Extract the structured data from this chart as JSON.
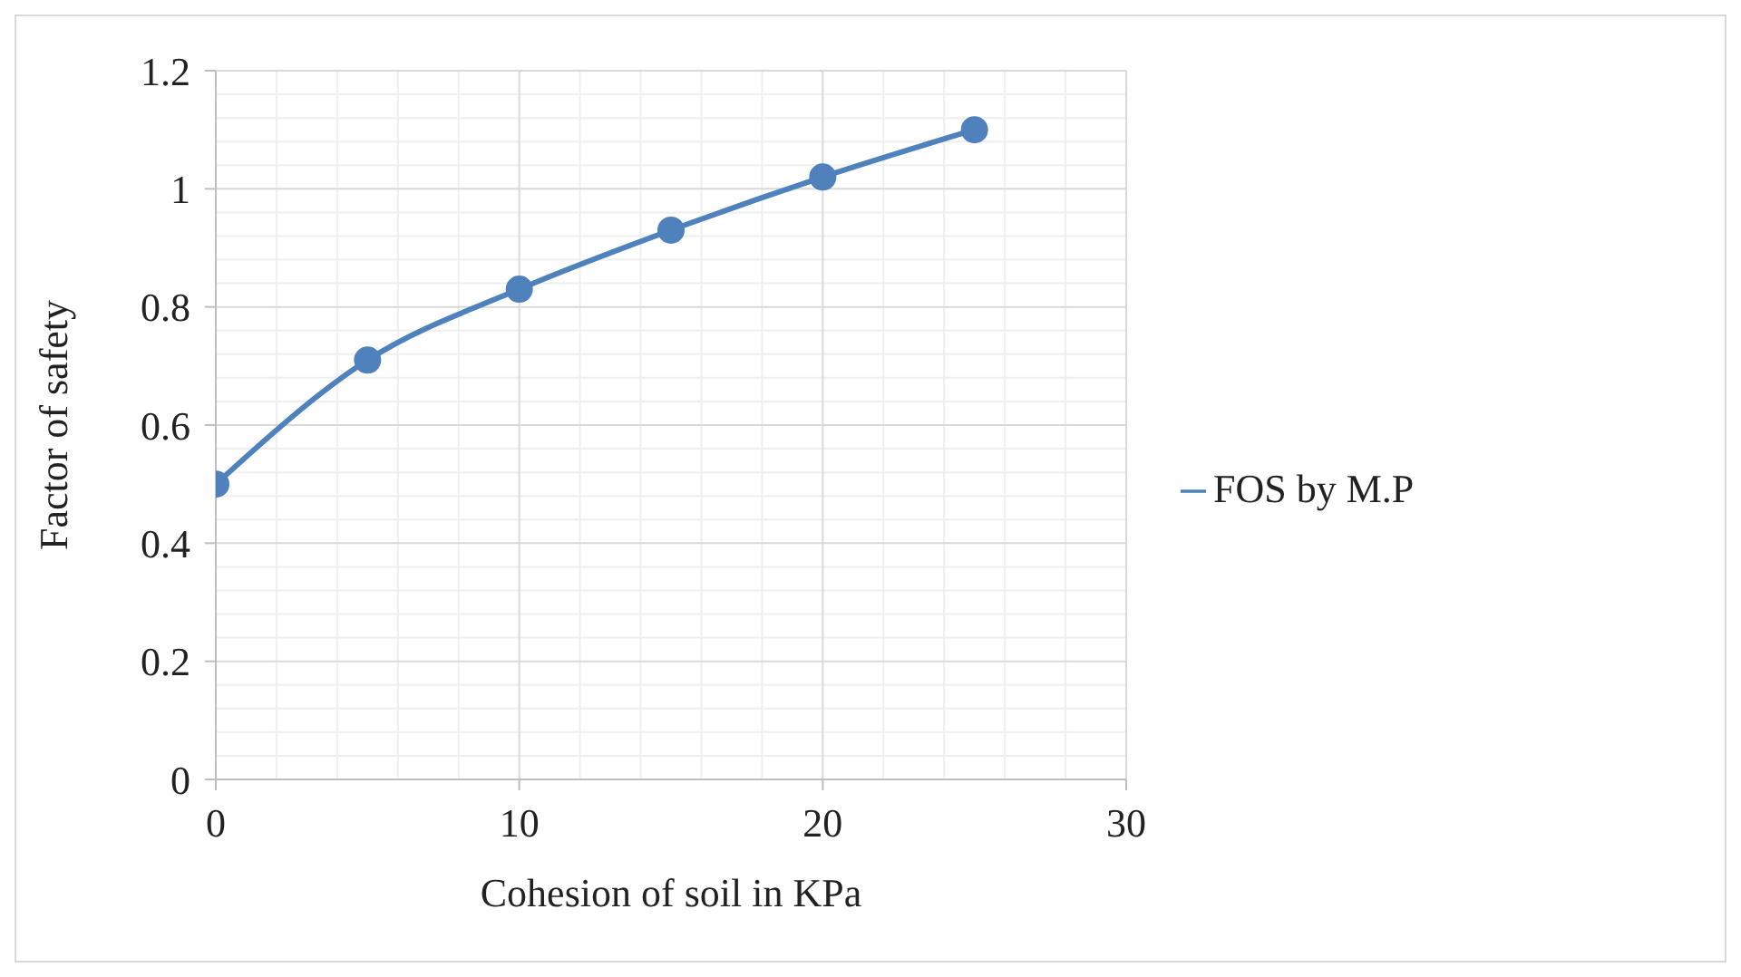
{
  "chart_data": {
    "type": "line",
    "xlabel": "Cohesion of soil in KPa",
    "ylabel": "Factor of safety",
    "x": [
      0,
      5,
      10,
      15,
      20,
      25
    ],
    "series": [
      {
        "name": "FOS by M.P",
        "color": "#4f81bd",
        "values": [
          0.5,
          0.71,
          0.83,
          0.93,
          1.02,
          1.1
        ]
      }
    ],
    "xlim": [
      0,
      30
    ],
    "xticks": [
      0,
      10,
      20,
      30
    ],
    "ylim": [
      0,
      1.2
    ],
    "yticks": [
      0,
      0.2,
      0.4,
      0.6,
      0.8,
      1,
      1.2
    ],
    "grid": true,
    "legend": "right",
    "marker": "circle",
    "line_style": "solid"
  }
}
